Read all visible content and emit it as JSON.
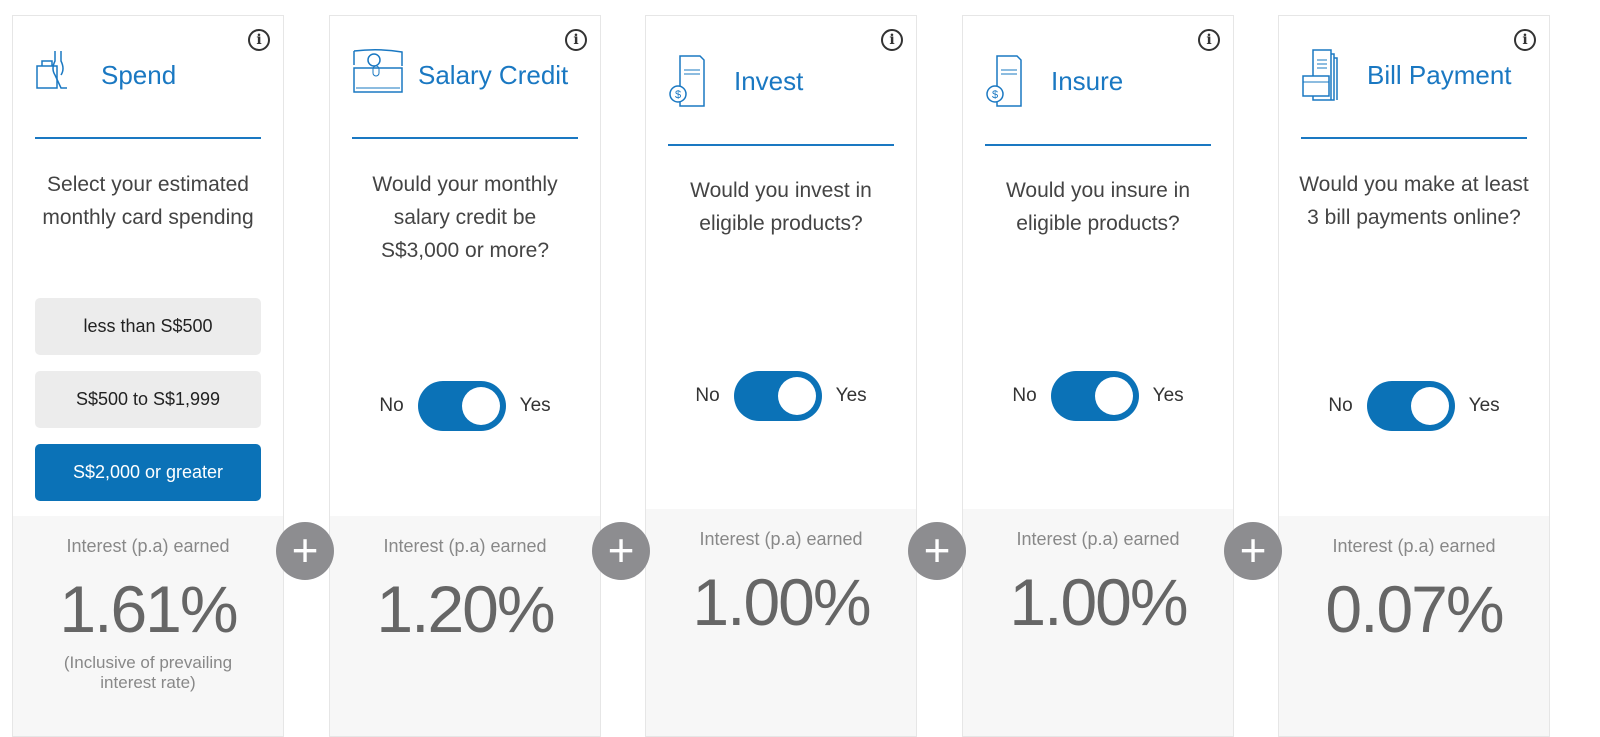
{
  "accent": "#0b72b7",
  "cards": [
    {
      "title": "Spend",
      "icon": "shopping-bag-icon",
      "question": "Select your estimated monthly card spending",
      "options": [
        "less than S$500",
        "S$500 to S$1,999",
        "S$2,000 or greater"
      ],
      "selected": 2,
      "rate_label": "Interest (p.a) earned",
      "rate": "1.61%",
      "note": "(Inclusive of prevailing interest rate)"
    },
    {
      "title": "Salary Credit",
      "icon": "salary-wallet-icon",
      "question": "Would your monthly salary credit be S$3,000 or more?",
      "no": "No",
      "yes": "Yes",
      "toggle_on": true,
      "rate_label": "Interest (p.a) earned",
      "rate": "1.20%"
    },
    {
      "title": "Invest",
      "icon": "invest-document-icon",
      "question": "Would you invest in eligible products?",
      "no": "No",
      "yes": "Yes",
      "toggle_on": true,
      "rate_label": "Interest (p.a) earned",
      "rate": "1.00%"
    },
    {
      "title": "Insure",
      "icon": "insure-document-icon",
      "question": "Would you insure in eligible products?",
      "no": "No",
      "yes": "Yes",
      "toggle_on": true,
      "rate_label": "Interest (p.a) earned",
      "rate": "1.00%"
    },
    {
      "title": "Bill Payment",
      "icon": "bill-payment-icon",
      "question": "Would you make at least 3 bill payments online?",
      "no": "No",
      "yes": "Yes",
      "toggle_on": true,
      "rate_label": "Interest (p.a) earned",
      "rate": "0.07%"
    }
  ],
  "plus": "+"
}
